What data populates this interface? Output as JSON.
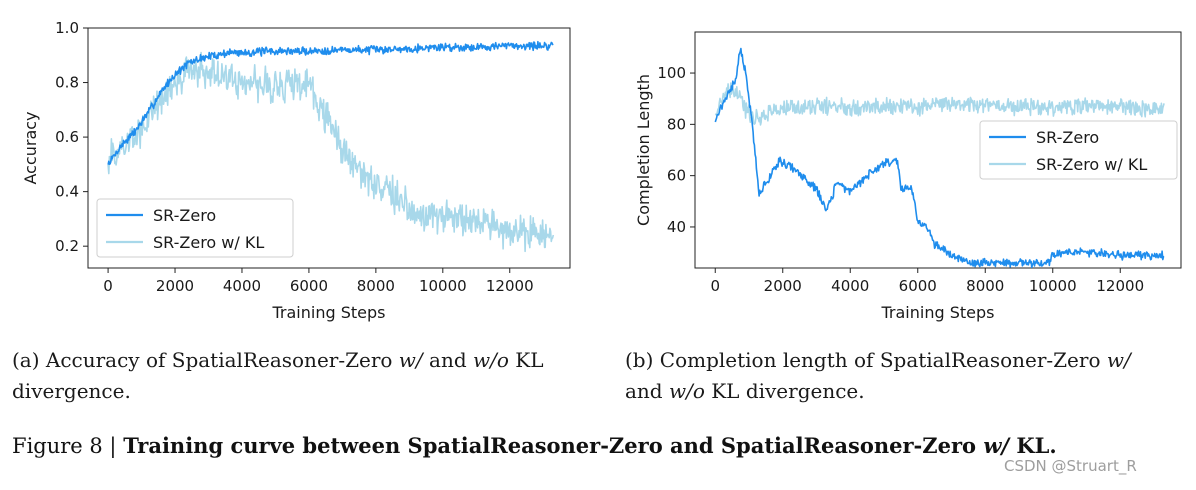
{
  "chart_data": [
    {
      "type": "line",
      "xlabel": "Training Steps",
      "ylabel": "Accuracy",
      "xlim": [
        -600,
        13800
      ],
      "ylim": [
        0.12,
        1.0
      ],
      "xticks": [
        0,
        2000,
        4000,
        6000,
        8000,
        10000,
        12000
      ],
      "yticks": [
        0.2,
        0.4,
        0.6,
        0.8,
        1.0
      ],
      "ytick_labels": [
        "0.2",
        "0.4",
        "0.6",
        "0.8",
        "1.0"
      ],
      "legend": "lower-left",
      "series": [
        {
          "name": "SR-Zero",
          "color": "#1f8ded",
          "noise": 0.012,
          "x": [
            0,
            400,
            800,
            1200,
            1600,
            2000,
            2400,
            2800,
            3200,
            3600,
            4000,
            5000,
            6000,
            7000,
            8000,
            9000,
            10000,
            11000,
            12000,
            13000,
            13300
          ],
          "y": [
            0.5,
            0.57,
            0.62,
            0.69,
            0.77,
            0.83,
            0.87,
            0.89,
            0.9,
            0.91,
            0.91,
            0.915,
            0.915,
            0.92,
            0.92,
            0.925,
            0.93,
            0.93,
            0.935,
            0.935,
            0.93
          ]
        },
        {
          "name": "SR-Zero w/ KL",
          "color": "#a8d8ea",
          "noise": 0.05,
          "x": [
            0,
            400,
            800,
            1200,
            1600,
            2000,
            2400,
            2800,
            3200,
            3600,
            4000,
            4400,
            4800,
            5200,
            5600,
            6000,
            6400,
            6800,
            7200,
            7600,
            8000,
            8500,
            9000,
            9500,
            10000,
            10500,
            11000,
            11500,
            12000,
            12500,
            13000,
            13300
          ],
          "y": [
            0.51,
            0.56,
            0.6,
            0.66,
            0.74,
            0.8,
            0.84,
            0.85,
            0.83,
            0.82,
            0.8,
            0.8,
            0.79,
            0.79,
            0.8,
            0.78,
            0.7,
            0.6,
            0.52,
            0.47,
            0.43,
            0.39,
            0.34,
            0.32,
            0.3,
            0.3,
            0.28,
            0.27,
            0.25,
            0.25,
            0.26,
            0.24
          ]
        }
      ]
    },
    {
      "type": "line",
      "xlabel": "Training Steps",
      "ylabel": "Completion Length",
      "xlim": [
        -600,
        13800
      ],
      "ylim": [
        24,
        116
      ],
      "xticks": [
        0,
        2000,
        4000,
        6000,
        8000,
        10000,
        12000
      ],
      "yticks": [
        40,
        60,
        80,
        100
      ],
      "ytick_labels": [
        "40",
        "60",
        "80",
        "100"
      ],
      "legend": "center-right",
      "series": [
        {
          "name": "SR-Zero",
          "color": "#1f8ded",
          "noise": 1.3,
          "x": [
            0,
            300,
            600,
            750,
            900,
            1100,
            1300,
            1500,
            1900,
            2300,
            2700,
            3000,
            3300,
            3600,
            4000,
            4500,
            5000,
            5400,
            5500,
            5800,
            6000,
            6300,
            6500,
            7000,
            7500,
            8000,
            9000,
            9900,
            10000,
            11000,
            12000,
            13300
          ],
          "y": [
            82,
            90,
            97,
            110,
            100,
            80,
            53,
            57,
            66,
            63,
            58,
            55,
            46,
            57,
            54,
            60,
            65,
            66,
            55,
            56,
            42,
            40,
            33,
            29,
            26,
            26,
            26,
            26,
            30,
            30,
            29,
            29
          ]
        },
        {
          "name": "SR-Zero w/ KL",
          "color": "#a8d8ea",
          "noise": 2.6,
          "x": [
            0,
            300,
            600,
            900,
            1200,
            1600,
            2000,
            3000,
            4000,
            5000,
            6000,
            7000,
            8000,
            9000,
            10000,
            11000,
            12000,
            13300
          ],
          "y": [
            84,
            92,
            93,
            86,
            82,
            85,
            86,
            87,
            87,
            87,
            87,
            88,
            88,
            87,
            87,
            87,
            87,
            86
          ]
        }
      ]
    }
  ],
  "captions": {
    "a_prefix": "(a) Accuracy of SpatialReasoner-Zero ",
    "a_w": "w/",
    "a_mid": " and ",
    "a_wo": "w/o",
    "a_suffix": " KL",
    "a_line2": "divergence.",
    "b_prefix": "(b) Completion length of SpatialReasoner-Zero ",
    "b_w": "w/",
    "b_line2_pre": "and ",
    "b_wo": "w/o",
    "b_line2_post": " KL divergence.",
    "fig_label": "Figure 8 | ",
    "fig_title": "Training curve between SpatialReasoner-Zero and SpatialReasoner-Zero ",
    "fig_title_em": "w/",
    "fig_title_end": " KL."
  },
  "watermark": "CSDN @Struart_R"
}
